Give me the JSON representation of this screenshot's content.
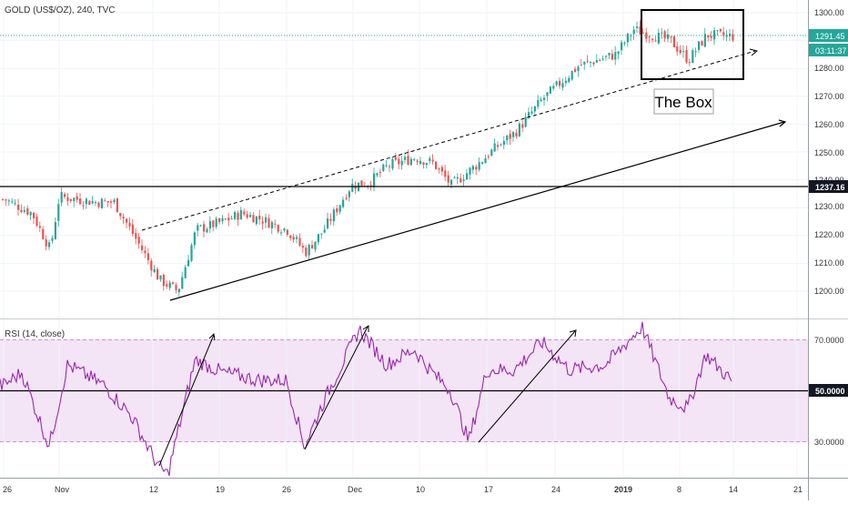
{
  "header": {
    "symbol": "GOLD (US$/OZ), 240, TVC"
  },
  "price_scale": {
    "tick_labels": [
      "1300.00",
      "1290.00",
      "1280.00",
      "1270.00",
      "1260.00",
      "1250.00",
      "1240.00",
      "1230.00",
      "1220.00",
      "1210.00",
      "1200.00"
    ],
    "last_price_label": "1291.45",
    "countdown_label": "03:11:37",
    "level_label": "1237.16",
    "colors": {
      "last_price_bg": "#26a69a",
      "level_bg": "#131722"
    }
  },
  "annotation": {
    "box_label": "The Box"
  },
  "rsi": {
    "title": "RSI (14, close)",
    "tick_labels": [
      "70.0000",
      "30.0000"
    ],
    "mid_label": "50.0000",
    "colors": {
      "line": "#9c27b0",
      "band": "#f3e5f5"
    }
  },
  "time_axis": {
    "labels": [
      "26",
      "Nov",
      "12",
      "19",
      "26",
      "Dec",
      "10",
      "17",
      "24",
      "2019",
      "8",
      "14",
      "21"
    ]
  },
  "chart_data": [
    {
      "type": "candlestick",
      "title": "GOLD (US$/OZ), 240, TVC",
      "x_range": [
        "2018-10-26",
        "2019-01-21"
      ],
      "ylim": [
        1195,
        1303
      ],
      "close_series": [
        {
          "x": "2018-10-26",
          "y": 1233
        },
        {
          "x": "2018-10-29",
          "y": 1228
        },
        {
          "x": "2018-10-31",
          "y": 1215
        },
        {
          "x": "2018-11-01",
          "y": 1234
        },
        {
          "x": "2018-11-05",
          "y": 1232
        },
        {
          "x": "2018-11-07",
          "y": 1232
        },
        {
          "x": "2018-11-09",
          "y": 1221
        },
        {
          "x": "2018-11-12",
          "y": 1204
        },
        {
          "x": "2018-11-14",
          "y": 1200
        },
        {
          "x": "2018-11-16",
          "y": 1222
        },
        {
          "x": "2018-11-19",
          "y": 1225
        },
        {
          "x": "2018-11-21",
          "y": 1228
        },
        {
          "x": "2018-11-23",
          "y": 1226
        },
        {
          "x": "2018-11-26",
          "y": 1222
        },
        {
          "x": "2018-11-28",
          "y": 1214
        },
        {
          "x": "2018-11-30",
          "y": 1222
        },
        {
          "x": "2018-12-03",
          "y": 1238
        },
        {
          "x": "2018-12-05",
          "y": 1239
        },
        {
          "x": "2018-12-07",
          "y": 1245
        },
        {
          "x": "2018-12-10",
          "y": 1248
        },
        {
          "x": "2018-12-12",
          "y": 1246
        },
        {
          "x": "2018-12-14",
          "y": 1238
        },
        {
          "x": "2018-12-17",
          "y": 1246
        },
        {
          "x": "2018-12-19",
          "y": 1252
        },
        {
          "x": "2018-12-21",
          "y": 1257
        },
        {
          "x": "2018-12-24",
          "y": 1269
        },
        {
          "x": "2018-12-26",
          "y": 1275
        },
        {
          "x": "2018-12-28",
          "y": 1281
        },
        {
          "x": "2019-01-01",
          "y": 1285
        },
        {
          "x": "2019-01-03",
          "y": 1294
        },
        {
          "x": "2019-01-07",
          "y": 1290
        },
        {
          "x": "2019-01-09",
          "y": 1283
        },
        {
          "x": "2019-01-11",
          "y": 1292
        },
        {
          "x": "2019-01-14",
          "y": 1291.45
        }
      ],
      "last_price": 1291.45,
      "horizontal_level": 1237.16,
      "annotations": [
        "The Box"
      ]
    },
    {
      "type": "line",
      "title": "RSI (14, close)",
      "ylim": [
        12,
        80
      ],
      "levels": [
        30,
        50,
        70
      ],
      "series": [
        {
          "name": "RSI (14, close)",
          "points": [
            {
              "x": "2018-10-26",
              "y": 52
            },
            {
              "x": "2018-10-28",
              "y": 57
            },
            {
              "x": "2018-10-31",
              "y": 28
            },
            {
              "x": "2018-11-02",
              "y": 60
            },
            {
              "x": "2018-11-06",
              "y": 52
            },
            {
              "x": "2018-11-09",
              "y": 40
            },
            {
              "x": "2018-11-12",
              "y": 20
            },
            {
              "x": "2018-11-13",
              "y": 17
            },
            {
              "x": "2018-11-16",
              "y": 62
            },
            {
              "x": "2018-11-19",
              "y": 57
            },
            {
              "x": "2018-11-23",
              "y": 54
            },
            {
              "x": "2018-11-26",
              "y": 54
            },
            {
              "x": "2018-11-28",
              "y": 28
            },
            {
              "x": "2018-11-30",
              "y": 45
            },
            {
              "x": "2018-12-04",
              "y": 74
            },
            {
              "x": "2018-12-07",
              "y": 60
            },
            {
              "x": "2018-12-10",
              "y": 66
            },
            {
              "x": "2018-12-12",
              "y": 57
            },
            {
              "x": "2018-12-14",
              "y": 50
            },
            {
              "x": "2018-12-16",
              "y": 30
            },
            {
              "x": "2018-12-18",
              "y": 58
            },
            {
              "x": "2018-12-21",
              "y": 58
            },
            {
              "x": "2018-12-24",
              "y": 69
            },
            {
              "x": "2018-12-27",
              "y": 58
            },
            {
              "x": "2018-12-31",
              "y": 60
            },
            {
              "x": "2019-01-04",
              "y": 75
            },
            {
              "x": "2019-01-07",
              "y": 47
            },
            {
              "x": "2019-01-09",
              "y": 43
            },
            {
              "x": "2019-01-11",
              "y": 64
            },
            {
              "x": "2019-01-14",
              "y": 53
            }
          ]
        }
      ]
    }
  ]
}
